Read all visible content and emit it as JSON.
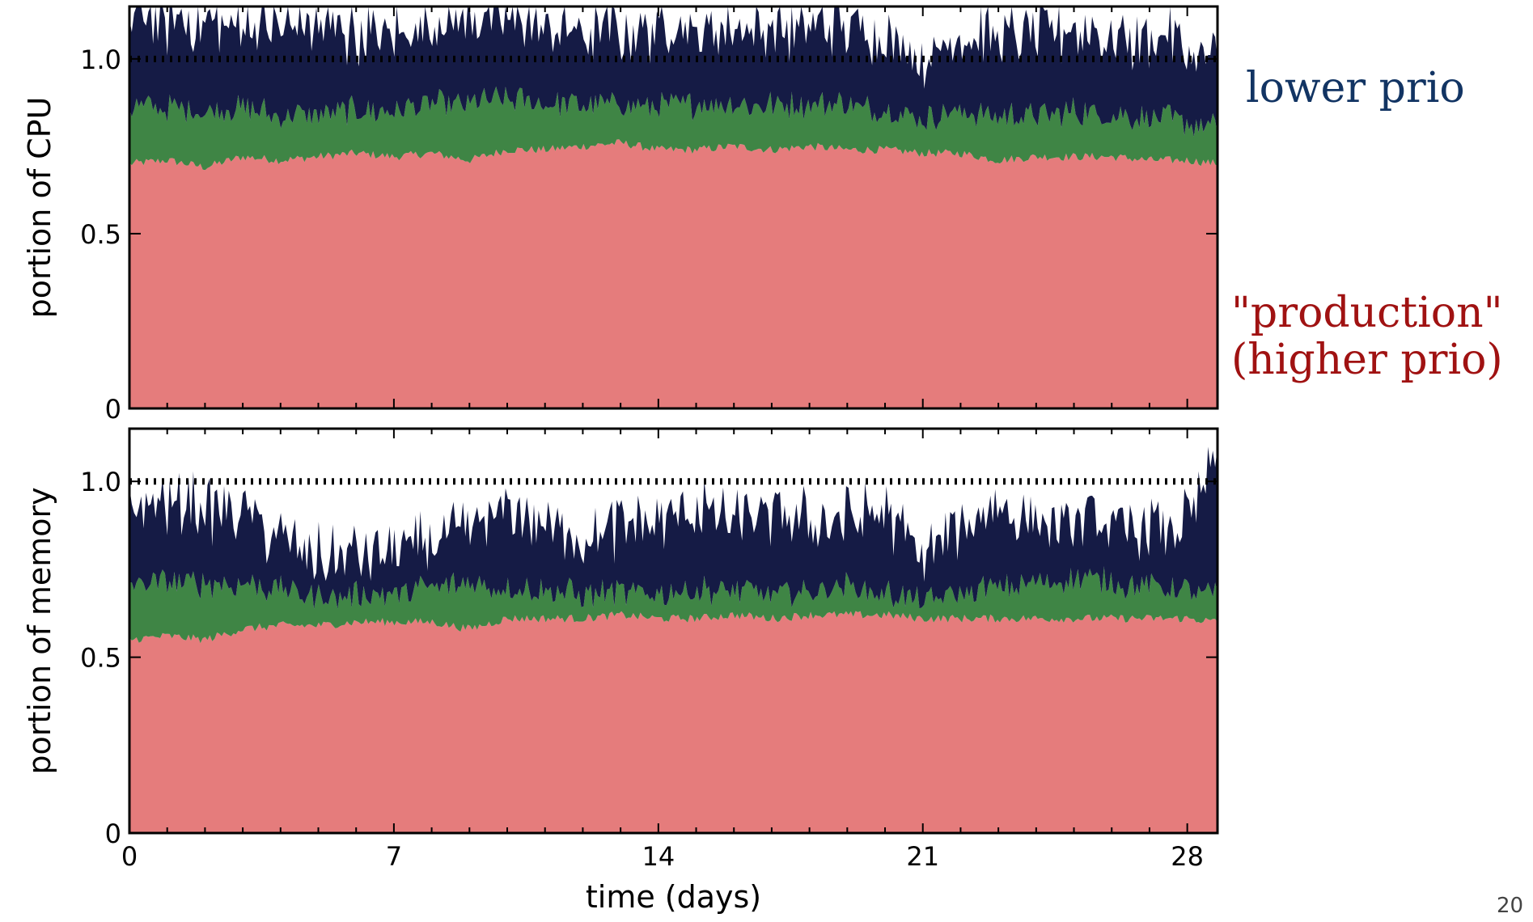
{
  "chart_data": [
    {
      "type": "area",
      "ylabel": "portion of CPU",
      "xlabel": "",
      "xlim": [
        0,
        28.8
      ],
      "ylim": [
        0,
        1.15
      ],
      "yticks": [
        0,
        0.5,
        1.0
      ],
      "ytick_labels": [
        "0",
        "0.5",
        "1.0"
      ],
      "reference_line": 1.0,
      "reference_style": "dotted",
      "series": [
        {
          "color": "#e57c7c",
          "x": [
            0,
            1,
            2,
            3,
            4,
            5,
            6,
            7,
            8,
            9,
            10,
            11,
            12,
            13,
            14,
            15,
            16,
            17,
            18,
            19,
            20,
            21,
            22,
            23,
            24,
            25,
            26,
            27,
            28,
            28.8
          ],
          "values": [
            0.7,
            0.71,
            0.69,
            0.72,
            0.71,
            0.72,
            0.73,
            0.72,
            0.73,
            0.71,
            0.74,
            0.74,
            0.75,
            0.76,
            0.74,
            0.74,
            0.75,
            0.74,
            0.75,
            0.74,
            0.74,
            0.73,
            0.73,
            0.71,
            0.72,
            0.72,
            0.72,
            0.71,
            0.71,
            0.7
          ]
        },
        {
          "color": "#3f8545",
          "x": [
            0,
            1,
            2,
            3,
            4,
            5,
            6,
            7,
            8,
            9,
            10,
            11,
            12,
            13,
            14,
            15,
            16,
            17,
            18,
            19,
            20,
            21,
            22,
            23,
            24,
            25,
            26,
            27,
            28,
            28.8
          ],
          "values": [
            0.16,
            0.15,
            0.16,
            0.14,
            0.13,
            0.12,
            0.12,
            0.13,
            0.14,
            0.16,
            0.15,
            0.13,
            0.12,
            0.11,
            0.12,
            0.13,
            0.12,
            0.13,
            0.12,
            0.13,
            0.11,
            0.1,
            0.12,
            0.13,
            0.12,
            0.13,
            0.12,
            0.12,
            0.11,
            0.1
          ]
        },
        {
          "color": "#151b45",
          "x": [
            0,
            1,
            2,
            3,
            4,
            5,
            6,
            7,
            8,
            9,
            10,
            11,
            12,
            13,
            14,
            15,
            16,
            17,
            18,
            19,
            20,
            21,
            22,
            23,
            24,
            25,
            26,
            27,
            28,
            28.8
          ],
          "values": [
            0.26,
            0.25,
            0.26,
            0.24,
            0.26,
            0.25,
            0.22,
            0.22,
            0.22,
            0.24,
            0.23,
            0.22,
            0.2,
            0.21,
            0.22,
            0.21,
            0.23,
            0.22,
            0.23,
            0.22,
            0.23,
            0.17,
            0.22,
            0.23,
            0.23,
            0.24,
            0.23,
            0.23,
            0.21,
            0.18
          ]
        }
      ]
    },
    {
      "type": "area",
      "ylabel": "portion of memory",
      "xlabel": "time (days)",
      "xlim": [
        0,
        28.8
      ],
      "ylim": [
        0,
        1.15
      ],
      "xticks": [
        0,
        7,
        14,
        21,
        28
      ],
      "xtick_labels": [
        "0",
        "7",
        "14",
        "21",
        "28"
      ],
      "yticks": [
        0,
        0.5,
        1.0
      ],
      "ytick_labels": [
        "0",
        "0.5",
        "1.0"
      ],
      "reference_line": 1.0,
      "reference_style": "dotted",
      "series": [
        {
          "color": "#e57c7c",
          "x": [
            0,
            1,
            2,
            3,
            4,
            5,
            6,
            7,
            8,
            9,
            10,
            11,
            12,
            13,
            14,
            15,
            16,
            17,
            18,
            19,
            20,
            21,
            22,
            23,
            24,
            25,
            26,
            27,
            28,
            28.8
          ],
          "values": [
            0.55,
            0.56,
            0.55,
            0.58,
            0.59,
            0.59,
            0.6,
            0.6,
            0.6,
            0.58,
            0.61,
            0.61,
            0.61,
            0.62,
            0.61,
            0.61,
            0.62,
            0.61,
            0.62,
            0.62,
            0.62,
            0.61,
            0.61,
            0.61,
            0.61,
            0.61,
            0.61,
            0.61,
            0.61,
            0.6
          ]
        },
        {
          "color": "#3f8545",
          "x": [
            0,
            1,
            2,
            3,
            4,
            5,
            6,
            7,
            8,
            9,
            10,
            11,
            12,
            13,
            14,
            15,
            16,
            17,
            18,
            19,
            20,
            21,
            22,
            23,
            24,
            25,
            26,
            27,
            28,
            28.8
          ],
          "values": [
            0.16,
            0.15,
            0.16,
            0.13,
            0.1,
            0.08,
            0.08,
            0.08,
            0.1,
            0.13,
            0.09,
            0.08,
            0.07,
            0.06,
            0.07,
            0.08,
            0.07,
            0.07,
            0.07,
            0.08,
            0.06,
            0.05,
            0.07,
            0.09,
            0.1,
            0.12,
            0.1,
            0.09,
            0.08,
            0.07
          ]
        },
        {
          "color": "#151b45",
          "x": [
            0,
            1,
            2,
            3,
            4,
            5,
            6,
            7,
            8,
            9,
            10,
            11,
            12,
            13,
            14,
            15,
            16,
            17,
            18,
            19,
            20,
            21,
            22,
            23,
            24,
            25,
            26,
            27,
            28,
            28.8
          ],
          "values": [
            0.22,
            0.22,
            0.22,
            0.21,
            0.14,
            0.11,
            0.12,
            0.12,
            0.12,
            0.15,
            0.24,
            0.19,
            0.16,
            0.18,
            0.21,
            0.24,
            0.19,
            0.22,
            0.2,
            0.19,
            0.24,
            0.12,
            0.19,
            0.23,
            0.17,
            0.16,
            0.17,
            0.16,
            0.19,
            0.38
          ]
        }
      ]
    }
  ],
  "annotations": {
    "lower_prio": "lower prio",
    "production_line1": "\"production\"",
    "production_line2": "(higher prio)",
    "lower_color": "#123463",
    "production_color": "#a01212"
  },
  "slide_number": "20"
}
